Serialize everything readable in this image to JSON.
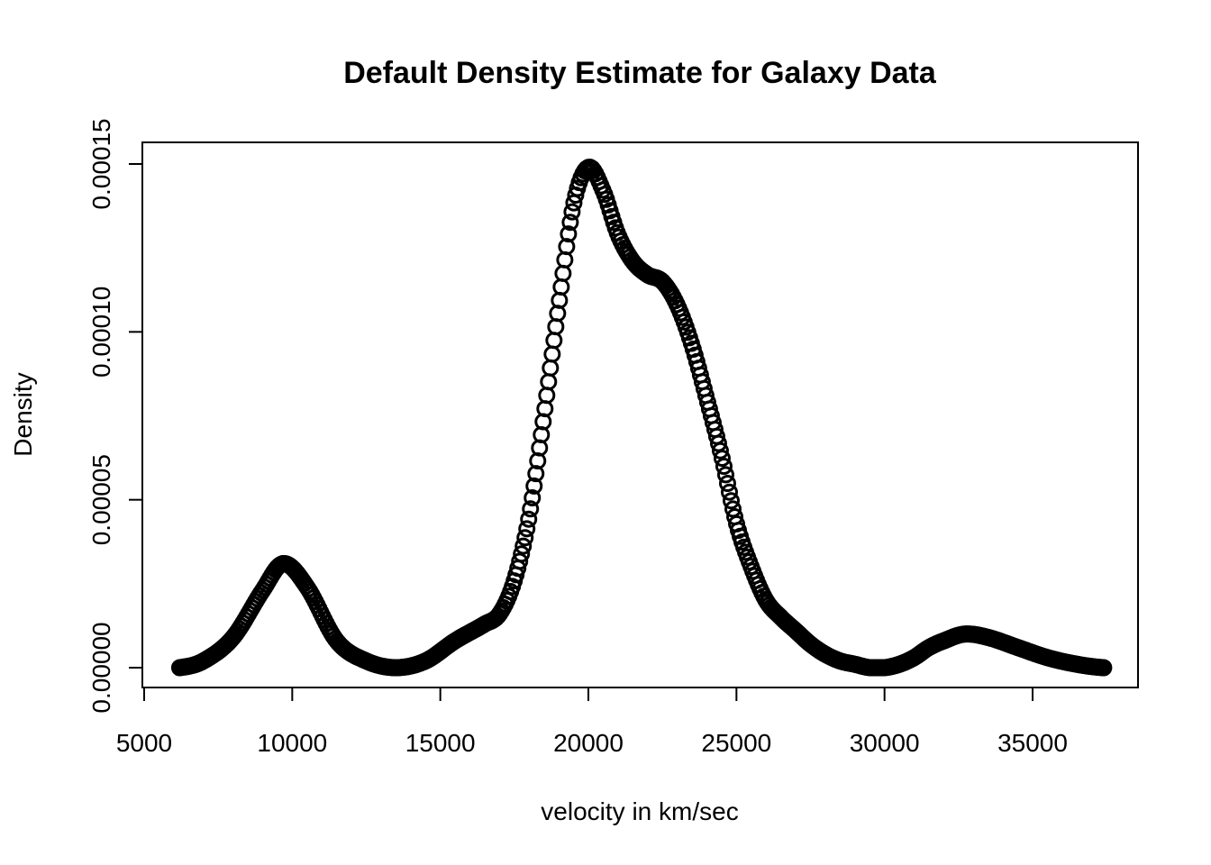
{
  "chart_data": {
    "type": "scatter",
    "title": "Default Density Estimate for Galaxy Data",
    "xlabel": "velocity in km/sec",
    "ylabel": "Density",
    "xlim": [
      5000,
      38000
    ],
    "ylim": [
      0,
      0.00015
    ],
    "x_ticks": [
      "5000",
      "10000",
      "15000",
      "20000",
      "25000",
      "30000",
      "35000"
    ],
    "y_ticks": [
      "0.00000",
      "0.00005",
      "0.00010",
      "0.00015"
    ],
    "grid": false,
    "legend": "none",
    "marker": "open-circle",
    "color": "#000000",
    "x_range": [
      6200,
      37400
    ],
    "n_points": 512,
    "curve": {
      "x": [
        6200,
        7000,
        8000,
        9000,
        9700,
        10500,
        11500,
        12500,
        13500,
        14500,
        15500,
        16500,
        17000,
        17500,
        18000,
        18500,
        19000,
        19500,
        20000,
        20500,
        21000,
        21500,
        22000,
        22500,
        23000,
        23500,
        24000,
        24500,
        25000,
        25500,
        26000,
        26500,
        27000,
        27500,
        28000,
        28500,
        29000,
        29500,
        30000,
        30500,
        31000,
        31500,
        32000,
        32700,
        33500,
        34500,
        35500,
        36500,
        37400
      ],
      "y": [
        0.0,
        2e-06,
        9e-06,
        2.3e-05,
        3.1e-05,
        2.4e-05,
        8e-06,
        2e-06,
        0.0,
        2e-06,
        8e-06,
        1.3e-05,
        1.6e-05,
        2.6e-05,
        4.5e-05,
        7.5e-05,
        0.000108,
        0.000138,
        0.000149,
        0.000142,
        0.000129,
        0.000121,
        0.000117,
        0.000115,
        0.000108,
        9.6e-05,
        8e-05,
        6.3e-05,
        4.3e-05,
        3e-05,
        2e-05,
        1.5e-05,
        1.1e-05,
        7e-06,
        4e-06,
        2e-06,
        1e-06,
        0.0,
        0.0,
        1e-06,
        3e-06,
        6e-06,
        8e-06,
        1e-05,
        9e-06,
        6e-06,
        3e-06,
        1e-06,
        0.0
      ]
    }
  }
}
